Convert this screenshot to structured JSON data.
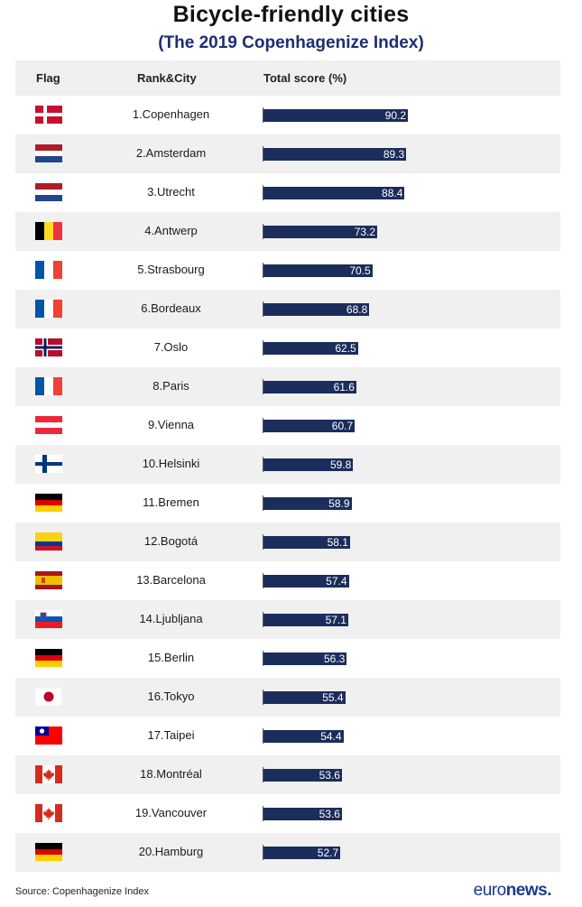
{
  "title": "Bicycle-friendly cities",
  "subtitle": "(The 2019 Copenhagenize Index)",
  "header": {
    "flag": "Flag",
    "city": "Rank&City",
    "score": "Total score (%)"
  },
  "chart_data": {
    "type": "bar",
    "orientation": "horizontal",
    "title": "Bicycle-friendly cities",
    "subtitle": "(The 2019 Copenhagenize Index)",
    "categories": [
      "1.Copenhagen",
      "2.Amsterdam",
      "3.Utrecht",
      "4.Antwerp",
      "5.Strasbourg",
      "6.Bordeaux",
      "7.Oslo",
      "8.Paris",
      "9.Vienna",
      "10.Helsinki",
      "11.Bremen",
      "12.Bogotá",
      "13.Barcelona",
      "14.Ljubljana",
      "15.Berlin",
      "16.Tokyo",
      "17.Taipei",
      "18.Montréal",
      "19.Vancouver",
      "20.Hamburg"
    ],
    "values": [
      90.2,
      89.3,
      88.4,
      73.2,
      70.5,
      68.8,
      62.5,
      61.6,
      60.7,
      59.8,
      58.9,
      58.1,
      57.4,
      57.1,
      56.3,
      55.4,
      54.4,
      53.6,
      53.6,
      52.7
    ],
    "value_labels": [
      "90.2",
      "89.3",
      "88.4",
      "73.2",
      "70.5",
      "68.8",
      "62.5",
      "61.6",
      "60.7",
      "59.8",
      "58.9",
      "58.1",
      "57.4",
      "57.1",
      "56.3",
      "55.4",
      "54.4",
      "53.6",
      "53.6",
      "52.7"
    ],
    "flags": [
      "denmark-flag",
      "netherlands-flag",
      "netherlands-flag",
      "belgium-flag",
      "france-flag",
      "france-flag",
      "norway-flag",
      "france-flag",
      "austria-flag",
      "finland-flag",
      "germany-flag",
      "colombia-flag",
      "spain-flag",
      "slovenia-flag",
      "germany-flag",
      "japan-flag",
      "taiwan-flag",
      "canada-flag",
      "canada-flag",
      "germany-flag"
    ],
    "ylabel": "Total score (%)",
    "bar_color": "#1b2d5b",
    "label_color": "#ffffff"
  },
  "footer": {
    "source": "Source: Copenhagenize Index",
    "logo_light": "euro",
    "logo_bold": "news."
  },
  "colors": {
    "subtitle": "#1d2e73",
    "row_shade": "#f0f0f0",
    "logo": "#1a3a8c"
  }
}
